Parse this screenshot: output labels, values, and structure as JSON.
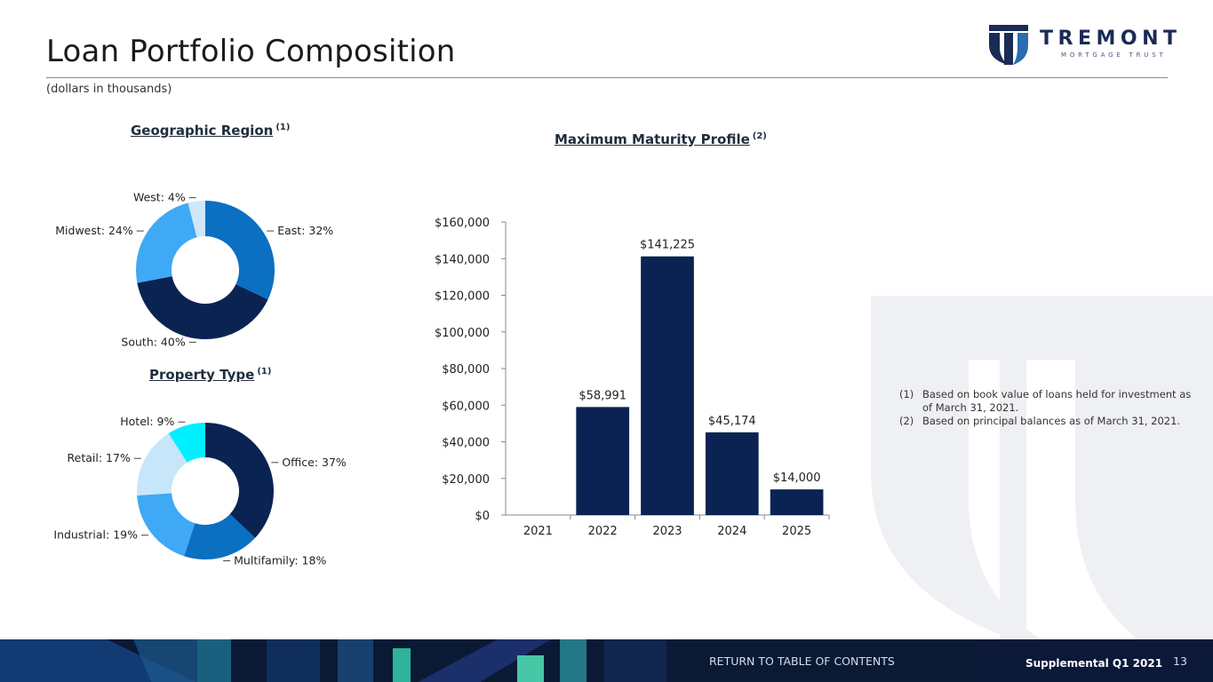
{
  "header": {
    "title": "Loan Portfolio Composition",
    "subtitle": "(dollars in thousands)",
    "logo": {
      "word": "TREMONT",
      "sub": "MORTGAGE TRUST",
      "icon": "tremont-t-shield-icon"
    }
  },
  "colors": {
    "navy": "#0a2352",
    "blue": "#0b6fc2",
    "light_blue": "#3fa9f5",
    "pale_blue": "#c8e6fa",
    "cyan": "#00f0ff",
    "very_pale": "#cfe6fb"
  },
  "charts": {
    "geo": {
      "title": "Geographic Region",
      "note": "(1)"
    },
    "property": {
      "title": "Property Type",
      "note": "(1)"
    },
    "maturity": {
      "title": "Maximum Maturity Profile",
      "note": "(2)"
    }
  },
  "chart_data": [
    {
      "type": "pie",
      "title": "Geographic Region",
      "slices": [
        {
          "label": "East",
          "value": 32,
          "display": "East: 32%",
          "color": "#0b6fc2"
        },
        {
          "label": "South",
          "value": 40,
          "display": "South: 40%",
          "color": "#0a2352"
        },
        {
          "label": "Midwest",
          "value": 24,
          "display": "Midwest: 24%",
          "color": "#3fa9f5"
        },
        {
          "label": "West",
          "value": 4,
          "display": "West: 4%",
          "color": "#cfe6fb"
        }
      ]
    },
    {
      "type": "pie",
      "title": "Property Type",
      "slices": [
        {
          "label": "Office",
          "value": 37,
          "display": "Office: 37%",
          "color": "#0a2352"
        },
        {
          "label": "Multifamily",
          "value": 18,
          "display": "Multifamily: 18%",
          "color": "#0b6fc2"
        },
        {
          "label": "Industrial",
          "value": 19,
          "display": "Industrial: 19%",
          "color": "#3fa9f5"
        },
        {
          "label": "Retail",
          "value": 17,
          "display": "Retail: 17%",
          "color": "#c8e6fa"
        },
        {
          "label": "Hotel",
          "value": 9,
          "display": "Hotel: 9%",
          "color": "#00f0ff"
        }
      ]
    },
    {
      "type": "bar",
      "title": "Maximum Maturity Profile",
      "categories": [
        "2021",
        "2022",
        "2023",
        "2024",
        "2025"
      ],
      "values": [
        0,
        58991,
        141225,
        45174,
        14000
      ],
      "data_labels": [
        "",
        "$58,991",
        "$141,225",
        "$45,174",
        "$14,000"
      ],
      "ylim": [
        0,
        160000
      ],
      "yticks": [
        0,
        20000,
        40000,
        60000,
        80000,
        100000,
        120000,
        140000,
        160000
      ],
      "ytick_labels": [
        "$0",
        "$20,000",
        "$40,000",
        "$60,000",
        "$80,000",
        "$100,000",
        "$120,000",
        "$140,000",
        "$160,000"
      ],
      "bar_color": "#0a2352",
      "grid": false
    }
  ],
  "footnotes": [
    {
      "num": "(1)",
      "text": "Based on book value of loans held for investment as of March 31, 2021."
    },
    {
      "num": "(2)",
      "text": "Based on principal balances as of March 31, 2021."
    }
  ],
  "footer": {
    "toc": "RETURN TO TABLE OF CONTENTS",
    "supplemental": "Supplemental Q1 2021",
    "page": "13"
  }
}
